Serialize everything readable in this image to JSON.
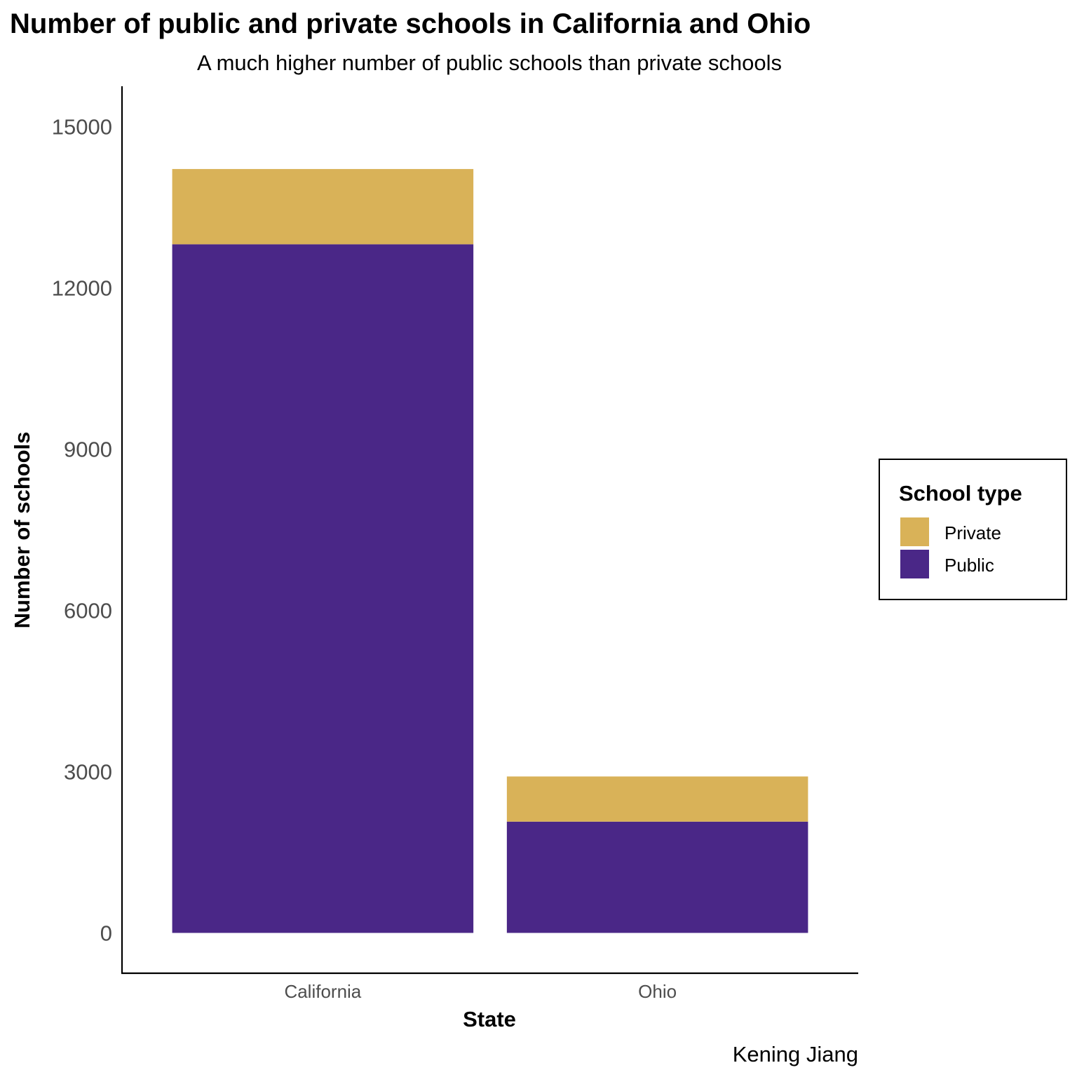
{
  "chart_data": {
    "type": "bar",
    "stacked": true,
    "title": "Number of public and private schools in California and Ohio",
    "subtitle": "A much higher number of public schools than private schools",
    "xlabel": "State",
    "ylabel": "Number of schools",
    "caption": "Kening Jiang",
    "categories": [
      "California",
      "Ohio"
    ],
    "series": [
      {
        "name": "Public",
        "color": "#4a2787",
        "values": [
          12810,
          2070
        ]
      },
      {
        "name": "Private",
        "color": "#d9b258",
        "values": [
          1400,
          840
        ]
      }
    ],
    "legend": {
      "title": "School type",
      "placement": "right",
      "order": [
        "Private",
        "Public"
      ]
    },
    "ylim": [
      -750,
      15750
    ],
    "yticks": [
      0,
      3000,
      6000,
      9000,
      12000,
      15000
    ],
    "grid": false
  }
}
